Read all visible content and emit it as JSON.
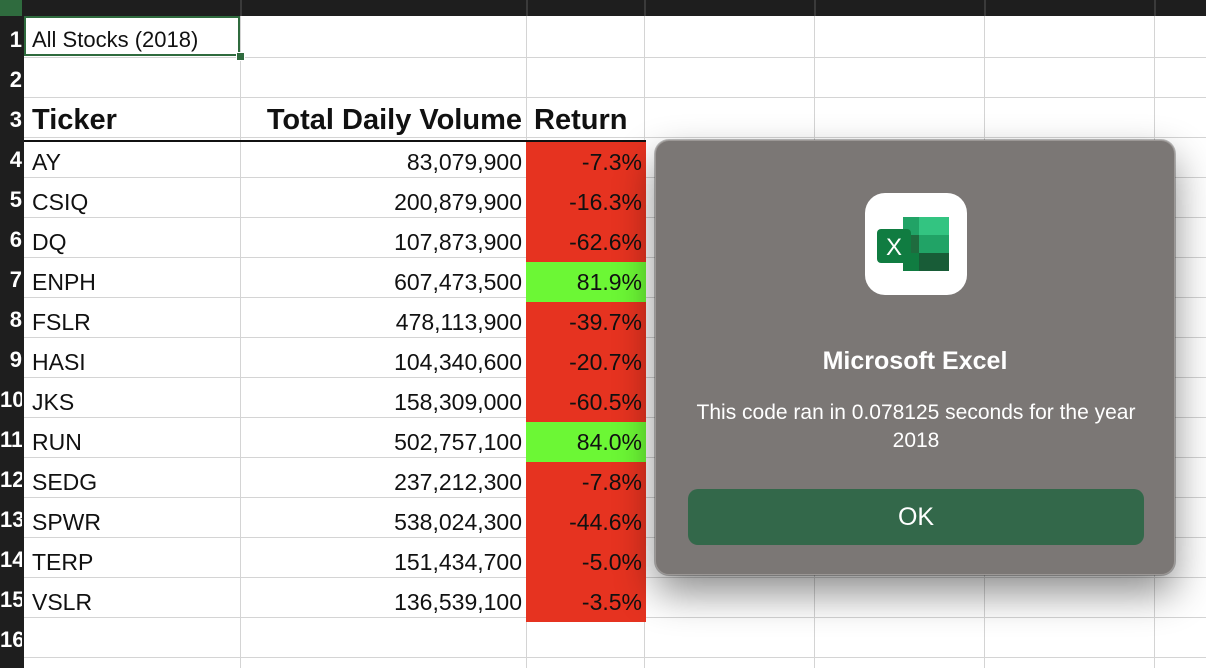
{
  "sheet": {
    "row_numbers": [
      "1",
      "2",
      "3",
      "4",
      "5",
      "6",
      "7",
      "8",
      "9",
      "10",
      "11",
      "12",
      "13",
      "14",
      "15",
      "16"
    ],
    "title_cell": "All Stocks (2018)",
    "headers": {
      "ticker": "Ticker",
      "volume": "Total Daily Volume",
      "return": "Return"
    },
    "rows": [
      {
        "ticker": "AY",
        "volume": "83,079,900",
        "return": "-7.3%",
        "status": "negative"
      },
      {
        "ticker": "CSIQ",
        "volume": "200,879,900",
        "return": "-16.3%",
        "status": "negative"
      },
      {
        "ticker": "DQ",
        "volume": "107,873,900",
        "return": "-62.6%",
        "status": "negative"
      },
      {
        "ticker": "ENPH",
        "volume": "607,473,500",
        "return": "81.9%",
        "status": "positive"
      },
      {
        "ticker": "FSLR",
        "volume": "478,113,900",
        "return": "-39.7%",
        "status": "negative"
      },
      {
        "ticker": "HASI",
        "volume": "104,340,600",
        "return": "-20.7%",
        "status": "negative"
      },
      {
        "ticker": "JKS",
        "volume": "158,309,000",
        "return": "-60.5%",
        "status": "negative"
      },
      {
        "ticker": "RUN",
        "volume": "502,757,100",
        "return": "84.0%",
        "status": "positive"
      },
      {
        "ticker": "SEDG",
        "volume": "237,212,300",
        "return": "-7.8%",
        "status": "negative"
      },
      {
        "ticker": "SPWR",
        "volume": "538,024,300",
        "return": "-44.6%",
        "status": "negative"
      },
      {
        "ticker": "TERP",
        "volume": "151,434,700",
        "return": "-5.0%",
        "status": "negative"
      },
      {
        "ticker": "VSLR",
        "volume": "136,539,100",
        "return": "-3.5%",
        "status": "negative"
      }
    ],
    "colors": {
      "negative": "#e63320",
      "positive": "#6cf735",
      "selection": "#2f6b3e"
    }
  },
  "dialog": {
    "icon": "excel-app-icon",
    "title": "Microsoft Excel",
    "message": "This code ran in 0.078125 seconds for the year 2018",
    "ok_label": "OK",
    "button_color": "#33684a"
  }
}
